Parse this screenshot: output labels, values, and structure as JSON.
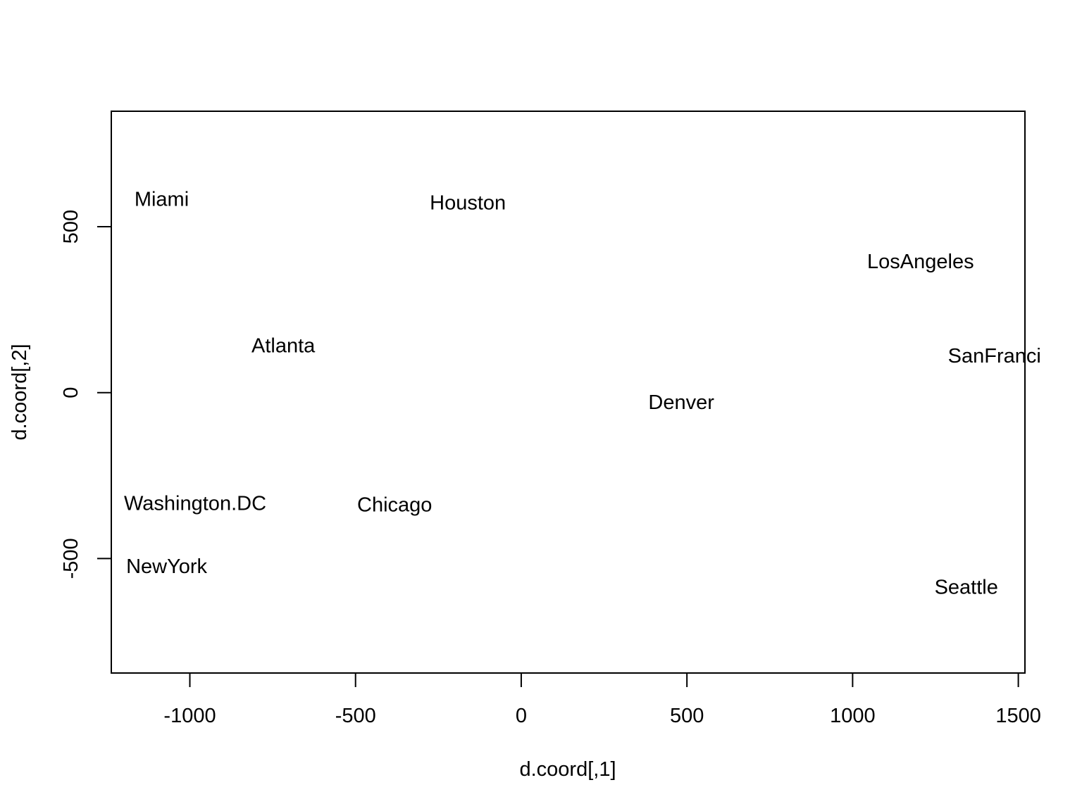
{
  "chart_data": {
    "type": "scatter",
    "title": "",
    "xlabel": "d.coord[,1]",
    "ylabel": "d.coord[,2]",
    "xlim": [
      -1237,
      1520
    ],
    "ylim": [
      -845,
      848
    ],
    "x_ticks": [
      -1000,
      -500,
      0,
      500,
      1000,
      1500
    ],
    "y_ticks": [
      -500,
      0,
      500
    ],
    "x_tick_labels": [
      "-1000",
      "-500",
      "0",
      "500",
      "1000",
      "1500"
    ],
    "y_tick_labels": [
      "-500",
      "0",
      "500"
    ],
    "grid": false,
    "legend": "none",
    "points": [
      {
        "label": "Miami",
        "x": -1085,
        "y": 582
      },
      {
        "label": "Houston",
        "x": -161,
        "y": 571
      },
      {
        "label": "LosAngeles",
        "x": 1205,
        "y": 394
      },
      {
        "label": "Atlanta",
        "x": -718,
        "y": 140
      },
      {
        "label": "SanFranci",
        "x": 1428,
        "y": 110
      },
      {
        "label": "Denver",
        "x": 483,
        "y": -30
      },
      {
        "label": "Washington.DC",
        "x": -984,
        "y": -335
      },
      {
        "label": "Chicago",
        "x": -382,
        "y": -339
      },
      {
        "label": "NewYork",
        "x": -1070,
        "y": -525
      },
      {
        "label": "Seattle",
        "x": 1343,
        "y": -587
      }
    ]
  }
}
